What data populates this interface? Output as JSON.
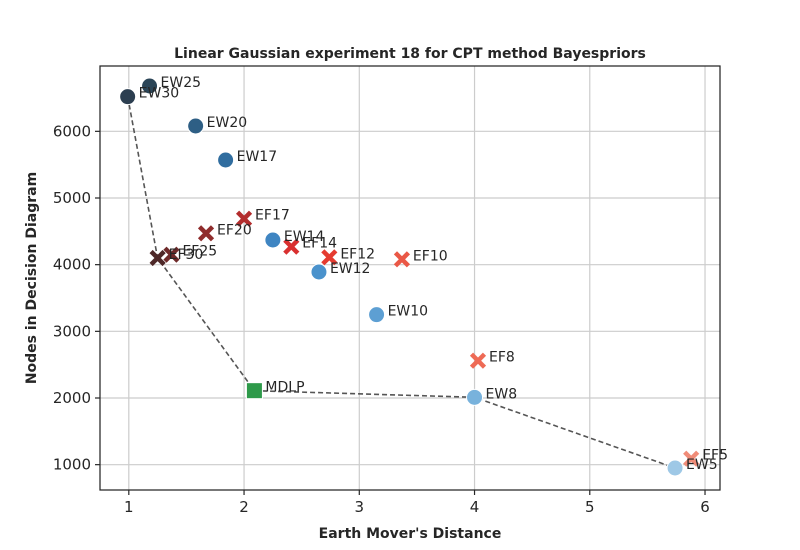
{
  "chart_data": {
    "type": "scatter",
    "title": "Linear Gaussian experiment 18 for CPT method Bayespriors",
    "xlabel": "Earth Mover's Distance",
    "ylabel": "Nodes in Decision Diagram",
    "xlim": [
      0.75,
      6.13
    ],
    "ylim": [
      620,
      6980
    ],
    "xticks": [
      1,
      2,
      3,
      4,
      5,
      6
    ],
    "yticks": [
      1000,
      2000,
      3000,
      4000,
      5000,
      6000
    ],
    "grid": true,
    "points": [
      {
        "label": "EW25",
        "x": 1.18,
        "y": 6680,
        "marker": "circle",
        "color": "#2b4557"
      },
      {
        "label": "EW30",
        "x": 0.99,
        "y": 6520,
        "marker": "circle",
        "color": "#2c3e50"
      },
      {
        "label": "EW20",
        "x": 1.58,
        "y": 6080,
        "marker": "circle",
        "color": "#2e5f85"
      },
      {
        "label": "EW17",
        "x": 1.84,
        "y": 5570,
        "marker": "circle",
        "color": "#306d9f"
      },
      {
        "label": "EF17",
        "x": 2.0,
        "y": 4690,
        "marker": "x",
        "color": "#b32c2c"
      },
      {
        "label": "EF20",
        "x": 1.67,
        "y": 4470,
        "marker": "x",
        "color": "#8f2c2c"
      },
      {
        "label": "EW14",
        "x": 2.25,
        "y": 4370,
        "marker": "circle",
        "color": "#3f85c2"
      },
      {
        "label": "EF14",
        "x": 2.41,
        "y": 4270,
        "marker": "x",
        "color": "#d93030"
      },
      {
        "label": "EF25",
        "x": 1.37,
        "y": 4150,
        "marker": "x",
        "color": "#6e2a2a"
      },
      {
        "label": "EF30",
        "x": 1.25,
        "y": 4100,
        "marker": "x",
        "color": "#4e2828"
      },
      {
        "label": "EF12",
        "x": 2.74,
        "y": 4110,
        "marker": "x",
        "color": "#e53b30"
      },
      {
        "label": "EF10",
        "x": 3.37,
        "y": 4080,
        "marker": "x",
        "color": "#ea5846"
      },
      {
        "label": "EW12",
        "x": 2.65,
        "y": 3890,
        "marker": "circle",
        "color": "#4a92cc"
      },
      {
        "label": "EW10",
        "x": 3.15,
        "y": 3250,
        "marker": "circle",
        "color": "#5d9fd3"
      },
      {
        "label": "EF8",
        "x": 4.03,
        "y": 2560,
        "marker": "x",
        "color": "#ee6a55"
      },
      {
        "label": "MDLP",
        "x": 2.09,
        "y": 2110,
        "marker": "square",
        "color": "#2e9a4a"
      },
      {
        "label": "EW8",
        "x": 4.0,
        "y": 2010,
        "marker": "circle",
        "color": "#78b2dc"
      },
      {
        "label": "EF5",
        "x": 5.88,
        "y": 1090,
        "marker": "x",
        "color": "#f08c78"
      },
      {
        "label": "EW5",
        "x": 5.74,
        "y": 950,
        "marker": "circle",
        "color": "#9ec8e6"
      }
    ],
    "pareto_front": [
      {
        "x": 0.99,
        "y": 6520
      },
      {
        "x": 1.25,
        "y": 4100
      },
      {
        "x": 2.09,
        "y": 2110
      },
      {
        "x": 4.0,
        "y": 2010
      },
      {
        "x": 5.74,
        "y": 950
      }
    ]
  }
}
